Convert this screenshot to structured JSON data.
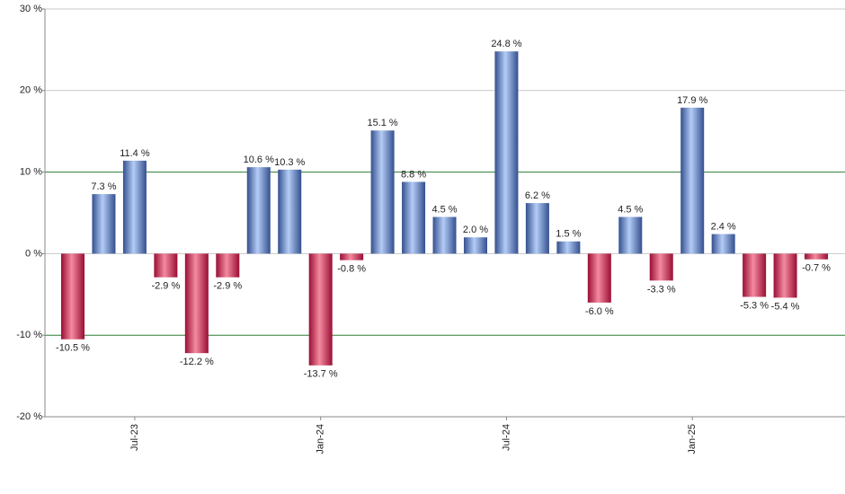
{
  "chart_data": {
    "type": "bar",
    "categories": [
      null,
      null,
      "Jul-23",
      null,
      null,
      null,
      null,
      null,
      "Jan-24",
      null,
      null,
      null,
      null,
      null,
      "Jul-24",
      null,
      null,
      null,
      null,
      null,
      "Jan-25",
      null,
      null,
      null,
      null
    ],
    "values": [
      -10.5,
      7.3,
      11.4,
      -2.9,
      -12.2,
      -2.9,
      10.6,
      10.3,
      -13.7,
      -0.8,
      15.1,
      8.8,
      4.5,
      2.0,
      24.8,
      6.2,
      1.5,
      -6.0,
      4.5,
      -3.3,
      17.9,
      2.4,
      -5.3,
      -5.4,
      -0.7
    ],
    "value_labels": [
      "-10.5 %",
      "7.3 %",
      "11.4 %",
      "-2.9 %",
      "-12.2 %",
      "-2.9 %",
      "10.6 %",
      "10.3 %",
      "-13.7 %",
      "-0.8 %",
      "15.1 %",
      "8.8 %",
      "4.5 %",
      "2.0 %",
      "24.8 %",
      "6.2 %",
      "1.5 %",
      "-6.0 %",
      "4.5 %",
      "-3.3 %",
      "17.9 %",
      "2.4 %",
      "-5.3 %",
      "-5.4 %",
      "-0.7 %"
    ],
    "positive_colors": [
      "#b4ccf6",
      "#34508e"
    ],
    "negative_colors": [
      "#f48aa0",
      "#9a0e34"
    ],
    "ylim": [
      -20,
      30
    ],
    "yticks": [
      {
        "value": -20,
        "label": "-20 %"
      },
      {
        "value": -10,
        "label": "-10 %"
      },
      {
        "value": 0,
        "label": "0 %"
      },
      {
        "value": 10,
        "label": "10 %"
      },
      {
        "value": 20,
        "label": "20 %"
      },
      {
        "value": 30,
        "label": "30 %"
      }
    ],
    "grid": true,
    "grid_colors": [
      "#c8c8c8",
      "#2e7d32",
      "#c8c8c8",
      "#2e7d32",
      "#c8c8c8",
      "#c8c8c8"
    ]
  }
}
